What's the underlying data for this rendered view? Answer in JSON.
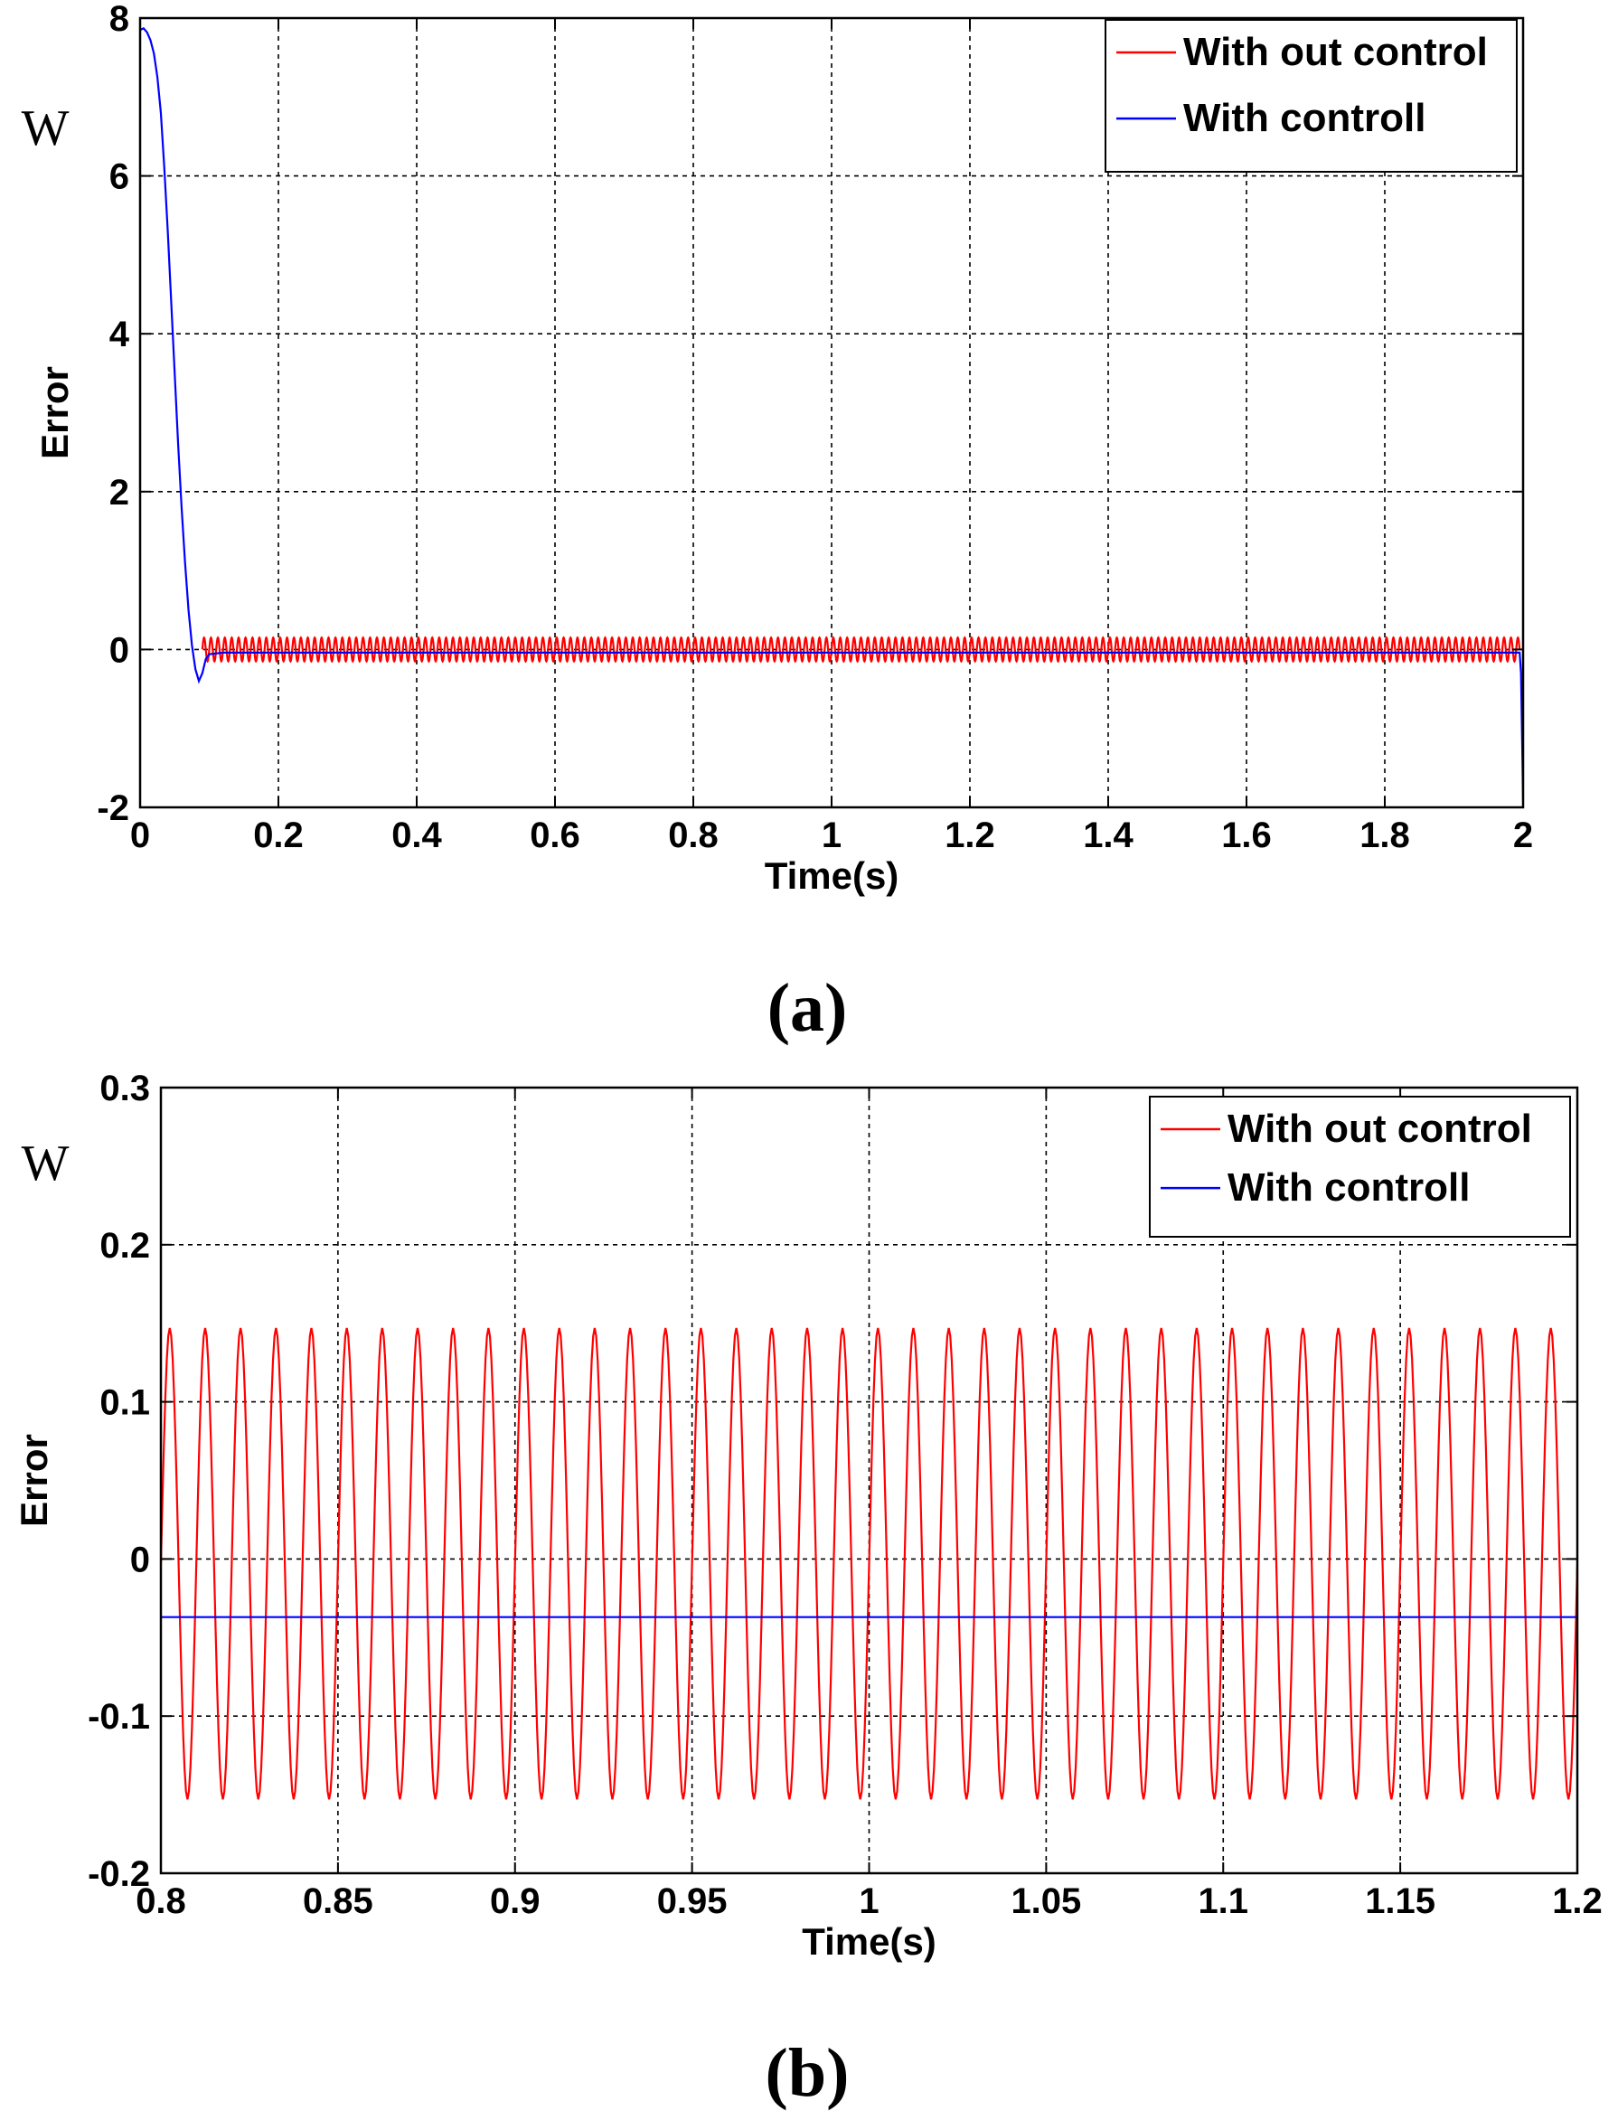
{
  "chart_data": [
    {
      "type": "line",
      "panel": "a",
      "caption": "(a)",
      "unit_label": "W",
      "xlabel": "Time(s)",
      "ylabel": "Error",
      "xlim": [
        0,
        2
      ],
      "ylim": [
        -2,
        8
      ],
      "xticks": [
        0,
        0.2,
        0.4,
        0.6,
        0.8,
        1,
        1.2,
        1.4,
        1.6,
        1.8,
        2
      ],
      "xtick_labels": [
        "0",
        "0.2",
        "0.4",
        "0.6",
        "0.8",
        "1",
        "1.2",
        "1.4",
        "1.6",
        "1.8",
        "2"
      ],
      "yticks": [
        -2,
        0,
        2,
        4,
        6,
        8
      ],
      "ytick_labels": [
        "-2",
        "0",
        "2",
        "4",
        "6",
        "8"
      ],
      "grid": true,
      "legend_position": "top-right",
      "series": [
        {
          "name": "With out control",
          "color": "#ff0000",
          "kind": "oscillation",
          "start": 0.09,
          "end": 1.995,
          "frequency_hz": 100,
          "amplitude": 0.15,
          "offset": 0
        },
        {
          "name": "With controll",
          "color": "#0000ff",
          "kind": "points",
          "points": [
            [
              0,
              7.85
            ],
            [
              0.005,
              7.87
            ],
            [
              0.01,
              7.82
            ],
            [
              0.015,
              7.72
            ],
            [
              0.02,
              7.55
            ],
            [
              0.025,
              7.25
            ],
            [
              0.03,
              6.8
            ],
            [
              0.035,
              6.1
            ],
            [
              0.04,
              5.3
            ],
            [
              0.045,
              4.4
            ],
            [
              0.05,
              3.5
            ],
            [
              0.055,
              2.6
            ],
            [
              0.06,
              1.8
            ],
            [
              0.065,
              1.1
            ],
            [
              0.07,
              0.5
            ],
            [
              0.075,
              0.05
            ],
            [
              0.08,
              -0.25
            ],
            [
              0.085,
              -0.4
            ],
            [
              0.09,
              -0.3
            ],
            [
              0.095,
              -0.12
            ],
            [
              0.1,
              -0.06
            ],
            [
              0.12,
              -0.04
            ],
            [
              1.995,
              -0.04
            ],
            [
              1.997,
              -0.3
            ],
            [
              2.0,
              -1.9
            ]
          ]
        }
      ]
    },
    {
      "type": "line",
      "panel": "b",
      "caption": "(b)",
      "unit_label": "W",
      "xlabel": "Time(s)",
      "ylabel": "Error",
      "xlim": [
        0.8,
        1.2
      ],
      "ylim": [
        -0.2,
        0.3
      ],
      "xticks": [
        0.8,
        0.85,
        0.9,
        0.95,
        1,
        1.05,
        1.1,
        1.15,
        1.2
      ],
      "xtick_labels": [
        "0.8",
        "0.85",
        "0.9",
        "0.95",
        "1",
        "1.05",
        "1.1",
        "1.15",
        "1.2"
      ],
      "yticks": [
        -0.2,
        -0.1,
        0,
        0.1,
        0.2,
        0.3
      ],
      "ytick_labels": [
        "-0.2",
        "-0.1",
        "0",
        "0.1",
        "0.2",
        "0.3"
      ],
      "grid": true,
      "legend_position": "top-right",
      "series": [
        {
          "name": "With out control",
          "color": "#ff0000",
          "kind": "oscillation",
          "start": 0.8,
          "end": 1.2,
          "frequency_hz": 100,
          "amplitude": 0.15,
          "offset": -0.003
        },
        {
          "name": "With controll",
          "color": "#0000ff",
          "kind": "points",
          "points": [
            [
              0.8,
              -0.037
            ],
            [
              1.2,
              -0.037
            ]
          ]
        }
      ]
    }
  ]
}
